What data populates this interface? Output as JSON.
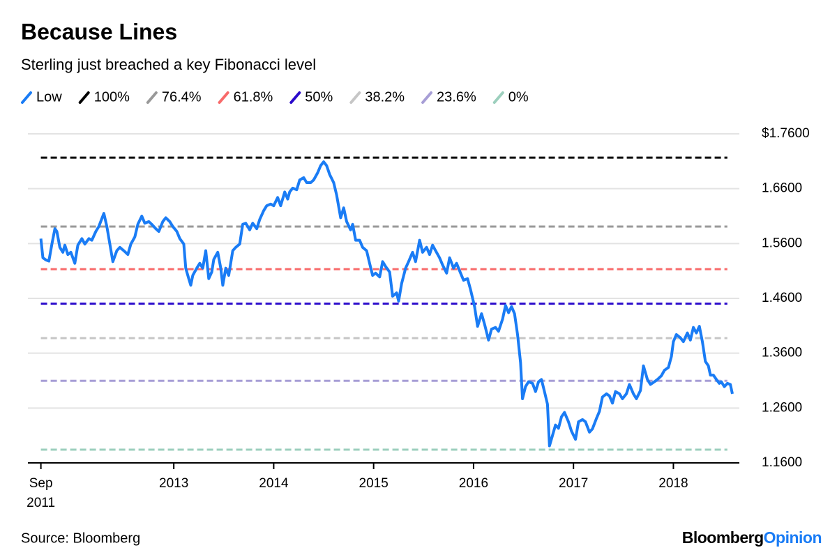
{
  "chart_data": {
    "type": "line",
    "title": "Because Lines",
    "subtitle": "Sterling just breached a key Fibonacci level",
    "source": "Source: Bloomberg",
    "brand": [
      "Bloomberg",
      "Opinion"
    ],
    "brand_colors": [
      "#000000",
      "#1a7cf5"
    ],
    "grid": true,
    "xlim": [
      2011.54,
      2018.66
    ],
    "ylim": [
      1.16,
      1.76
    ],
    "xticks": [
      {
        "value": 2011.67,
        "label": "Sep 2011"
      },
      2013,
      2014,
      2015,
      2016,
      2017,
      2018
    ],
    "yticks": [
      {
        "value": 1.76,
        "label": "$1.7600"
      },
      {
        "value": 1.66,
        "label": "1.6600"
      },
      {
        "value": 1.56,
        "label": "1.5600"
      },
      {
        "value": 1.46,
        "label": "1.4600"
      },
      {
        "value": 1.36,
        "label": "1.3600"
      },
      {
        "value": 1.26,
        "label": "1.2600"
      },
      {
        "value": 1.16,
        "label": "1.1600"
      }
    ],
    "series": [
      {
        "name": "Low",
        "color": "#1a7cf5",
        "dashed": false,
        "x": [
          2011.67,
          2011.69,
          2011.72,
          2011.75,
          2011.78,
          2011.81,
          2011.83,
          2011.86,
          2011.89,
          2011.91,
          2011.94,
          2011.97,
          2012.01,
          2012.04,
          2012.08,
          2012.11,
          2012.15,
          2012.18,
          2012.22,
          2012.25,
          2012.3,
          2012.33,
          2012.36,
          2012.39,
          2012.43,
          2012.46,
          2012.5,
          2012.54,
          2012.57,
          2012.61,
          2012.64,
          2012.68,
          2012.71,
          2012.75,
          2012.78,
          2012.82,
          2012.85,
          2012.89,
          2012.92,
          2012.96,
          2012.99,
          2013.03,
          2013.06,
          2013.1,
          2013.12,
          2013.15,
          2013.17,
          2013.19,
          2013.23,
          2013.26,
          2013.29,
          2013.32,
          2013.35,
          2013.38,
          2013.4,
          2013.44,
          2013.47,
          2013.49,
          2013.52,
          2013.55,
          2013.59,
          2013.62,
          2013.66,
          2013.69,
          2013.72,
          2013.76,
          2013.79,
          2013.83,
          2013.86,
          2013.9,
          2013.93,
          2013.97,
          2014.0,
          2014.04,
          2014.07,
          2014.11,
          2014.14,
          2014.16,
          2014.19,
          2014.23,
          2014.26,
          2014.3,
          2014.33,
          2014.37,
          2014.4,
          2014.44,
          2014.47,
          2014.5,
          2014.53,
          2014.56,
          2014.6,
          2014.63,
          2014.67,
          2014.7,
          2014.73,
          2014.77,
          2014.79,
          2014.82,
          2014.86,
          2014.89,
          2014.93,
          2014.96,
          2014.99,
          2015.02,
          2015.06,
          2015.09,
          2015.12,
          2015.16,
          2015.19,
          2015.23,
          2015.25,
          2015.28,
          2015.32,
          2015.35,
          2015.39,
          2015.42,
          2015.46,
          2015.49,
          2015.53,
          2015.56,
          2015.59,
          2015.62,
          2015.66,
          2015.69,
          2015.73,
          2015.76,
          2015.8,
          2015.83,
          2015.87,
          2015.9,
          2015.94,
          2015.97,
          2016.01,
          2016.04,
          2016.08,
          2016.11,
          2016.15,
          2016.18,
          2016.22,
          2016.25,
          2016.29,
          2016.32,
          2016.35,
          2016.38,
          2016.41,
          2016.44,
          2016.47,
          2016.49,
          2016.52,
          2016.55,
          2016.59,
          2016.62,
          2016.65,
          2016.68,
          2016.71,
          2016.74,
          2016.76,
          2016.79,
          2016.82,
          2016.85,
          2016.88,
          2016.91,
          2016.95,
          2016.98,
          2017.02,
          2017.05,
          2017.09,
          2017.12,
          2017.16,
          2017.19,
          2017.23,
          2017.26,
          2017.29,
          2017.33,
          2017.36,
          2017.39,
          2017.42,
          2017.46,
          2017.49,
          2017.53,
          2017.56,
          2017.6,
          2017.63,
          2017.67,
          2017.7,
          2017.74,
          2017.77,
          2017.81,
          2017.84,
          2017.88,
          2017.91,
          2017.95,
          2017.98,
          2018.0,
          2018.03,
          2018.07,
          2018.1,
          2018.14,
          2018.17,
          2018.2,
          2018.23,
          2018.26,
          2018.29,
          2018.32,
          2018.35,
          2018.37,
          2018.4,
          2018.43,
          2018.46,
          2018.48,
          2018.51,
          2018.54,
          2018.57,
          2018.59
        ],
        "values": [
          1.569,
          1.534,
          1.53,
          1.528,
          1.559,
          1.587,
          1.582,
          1.553,
          1.544,
          1.557,
          1.54,
          1.544,
          1.524,
          1.557,
          1.569,
          1.559,
          1.569,
          1.566,
          1.582,
          1.591,
          1.615,
          1.591,
          1.559,
          1.527,
          1.547,
          1.553,
          1.547,
          1.54,
          1.559,
          1.572,
          1.595,
          1.61,
          1.597,
          1.6,
          1.595,
          1.587,
          1.582,
          1.6,
          1.607,
          1.6,
          1.591,
          1.582,
          1.569,
          1.559,
          1.515,
          1.496,
          1.484,
          1.502,
          1.515,
          1.524,
          1.515,
          1.547,
          1.496,
          1.508,
          1.531,
          1.544,
          1.515,
          1.484,
          1.515,
          1.502,
          1.547,
          1.553,
          1.559,
          1.595,
          1.597,
          1.585,
          1.597,
          1.587,
          1.604,
          1.62,
          1.629,
          1.632,
          1.629,
          1.644,
          1.629,
          1.654,
          1.641,
          1.654,
          1.661,
          1.658,
          1.676,
          1.68,
          1.671,
          1.671,
          1.676,
          1.689,
          1.702,
          1.709,
          1.702,
          1.686,
          1.671,
          1.648,
          1.607,
          1.625,
          1.6,
          1.585,
          1.595,
          1.566,
          1.566,
          1.553,
          1.547,
          1.524,
          1.502,
          1.506,
          1.499,
          1.527,
          1.518,
          1.508,
          1.464,
          1.47,
          1.455,
          1.487,
          1.515,
          1.527,
          1.544,
          1.527,
          1.566,
          1.544,
          1.553,
          1.54,
          1.557,
          1.547,
          1.534,
          1.521,
          1.506,
          1.534,
          1.515,
          1.524,
          1.506,
          1.493,
          1.496,
          1.476,
          1.445,
          1.409,
          1.432,
          1.413,
          1.384,
          1.404,
          1.407,
          1.4,
          1.422,
          1.447,
          1.434,
          1.445,
          1.432,
          1.394,
          1.343,
          1.277,
          1.299,
          1.308,
          1.305,
          1.29,
          1.308,
          1.312,
          1.29,
          1.267,
          1.191,
          1.21,
          1.229,
          1.223,
          1.244,
          1.252,
          1.235,
          1.218,
          1.203,
          1.235,
          1.239,
          1.235,
          1.216,
          1.222,
          1.241,
          1.254,
          1.28,
          1.286,
          1.282,
          1.269,
          1.29,
          1.286,
          1.277,
          1.286,
          1.303,
          1.286,
          1.277,
          1.292,
          1.337,
          1.312,
          1.303,
          1.308,
          1.312,
          1.319,
          1.329,
          1.334,
          1.354,
          1.381,
          1.394,
          1.388,
          1.381,
          1.397,
          1.384,
          1.407,
          1.397,
          1.409,
          1.381,
          1.345,
          1.337,
          1.32,
          1.32,
          1.312,
          1.305,
          1.308,
          1.299,
          1.305,
          1.303,
          1.286
        ]
      },
      {
        "name": "100%",
        "color": "#000000",
        "dashed": true,
        "x": [
          2011.67,
          2018.54
        ],
        "values": [
          1.7166,
          1.7166
        ]
      },
      {
        "name": "76.4%",
        "color": "#999999",
        "dashed": true,
        "x": [
          2011.67,
          2018.54
        ],
        "values": [
          1.5909,
          1.5909
        ]
      },
      {
        "name": "61.8%",
        "color": "#f86a6a",
        "dashed": true,
        "x": [
          2011.67,
          2018.54
        ],
        "values": [
          1.5132,
          1.5132
        ]
      },
      {
        "name": "50%",
        "color": "#2a0acb",
        "dashed": true,
        "x": [
          2011.67,
          2018.54
        ],
        "values": [
          1.4504,
          1.4504
        ]
      },
      {
        "name": "38.2%",
        "color": "#c6c6c6",
        "dashed": true,
        "x": [
          2011.67,
          2018.54
        ],
        "values": [
          1.3875,
          1.3875
        ]
      },
      {
        "name": "23.6%",
        "color": "#a79ed6",
        "dashed": true,
        "x": [
          2011.67,
          2018.54
        ],
        "values": [
          1.3098,
          1.3098
        ]
      },
      {
        "name": "0%",
        "color": "#9ccfbd",
        "dashed": true,
        "x": [
          2011.67,
          2018.54
        ],
        "values": [
          1.1841,
          1.1841
        ]
      }
    ]
  }
}
